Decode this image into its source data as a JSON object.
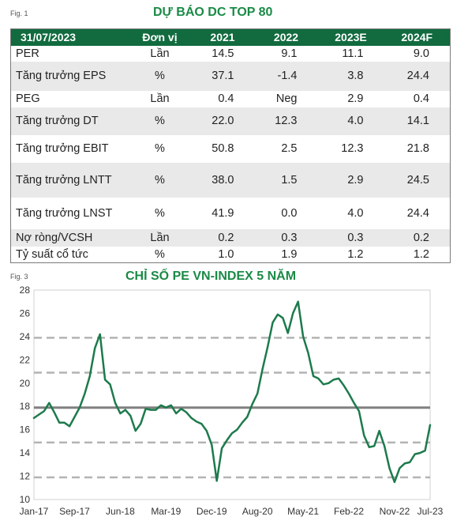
{
  "fig1_label": "Fig. 1",
  "table_title": "DỰ BÁO DC TOP 80",
  "table": {
    "headers": [
      "31/07/2023",
      "Đơn vị",
      "2021",
      "2022",
      "2023E",
      "2024F"
    ],
    "rows": [
      [
        "PER",
        "Lần",
        "14.5",
        "9.1",
        "11.1",
        "9.0"
      ],
      [
        "Tăng trưởng EPS",
        "%",
        "37.1",
        "-1.4",
        "3.8",
        "24.4"
      ],
      [
        "PEG",
        "Lần",
        "0.4",
        "Neg",
        "2.9",
        "0.4"
      ],
      [
        "Tăng trưởng DT",
        "%",
        "22.0",
        "12.3",
        "4.0",
        "14.1"
      ],
      [
        "Tăng trưởng EBIT",
        "%",
        "50.8",
        "2.5",
        "12.3",
        "21.8"
      ],
      [
        "Tăng trưởng LNTT",
        "%",
        "38.0",
        "1.5",
        "2.9",
        "24.5"
      ],
      [
        "Tăng trưởng LNST",
        "%",
        "41.9",
        "0.0",
        "4.0",
        "24.4"
      ],
      [
        "Nợ ròng/VCSH",
        "Lần",
        "0.2",
        "0.3",
        "0.3",
        "0.2"
      ],
      [
        "Tỷ suất cổ tức",
        "%",
        "1.0",
        "1.9",
        "1.2",
        "1.2"
      ]
    ]
  },
  "fig3_label": "Fig. 3",
  "chart_title": "CHỈ SỐ PE VN-INDEX 5 NĂM",
  "chart_data": {
    "type": "line",
    "title": "CHỈ SỐ PE VN-INDEX 5 NĂM",
    "xlabel": "",
    "ylabel": "",
    "ylim": [
      10,
      28
    ],
    "yticks": [
      10,
      12,
      14,
      16,
      18,
      20,
      22,
      24,
      26,
      28
    ],
    "xlim": [
      0,
      78
    ],
    "xtick_positions": [
      0,
      8,
      17,
      26,
      35,
      44,
      53,
      62,
      71,
      78
    ],
    "xtick_labels": [
      "Jan-17",
      "Sep-17",
      "Jun-18",
      "Mar-19",
      "Dec-19",
      "Aug-20",
      "May-21",
      "Feb-22",
      "Nov-22",
      "Jul-23"
    ],
    "grid": false,
    "legend": "none",
    "colors": {
      "series": "#1d7a4c",
      "mean": "#808080",
      "band": "#b3b3b3"
    },
    "reference_lines": [
      {
        "kind": "mean",
        "value": 17.9
      },
      {
        "kind": "band",
        "value": 23.9
      },
      {
        "kind": "band",
        "value": 20.9
      },
      {
        "kind": "band",
        "value": 14.9
      },
      {
        "kind": "band",
        "value": 11.9
      }
    ],
    "series": [
      {
        "x": [
          0,
          1,
          2,
          3,
          4,
          5,
          6,
          7,
          8,
          9,
          10,
          11,
          12,
          13,
          14,
          15,
          16,
          17,
          18,
          19,
          20,
          21,
          22,
          23,
          24,
          25,
          26,
          27,
          28,
          29,
          30,
          31,
          32,
          33,
          34,
          35,
          36,
          37,
          38,
          39,
          40,
          41,
          42,
          43,
          44,
          45,
          46,
          47,
          48,
          49,
          50,
          51,
          52,
          53,
          54,
          55,
          56,
          57,
          58,
          59,
          60,
          61,
          62,
          63,
          64,
          65,
          66,
          67,
          68,
          69,
          70,
          71,
          72,
          73,
          74,
          75,
          76,
          77,
          78
        ],
        "y": [
          17.0,
          17.3,
          17.6,
          18.3,
          17.5,
          16.6,
          16.6,
          16.3,
          17.1,
          17.9,
          19.1,
          20.6,
          23.0,
          24.2,
          20.3,
          19.9,
          18.3,
          17.4,
          17.7,
          17.2,
          15.9,
          16.5,
          17.8,
          17.7,
          17.7,
          18.1,
          17.9,
          18.1,
          17.4,
          17.8,
          17.5,
          17.0,
          16.7,
          16.5,
          15.9,
          14.7,
          11.6,
          14.4,
          15.1,
          15.7,
          16.0,
          16.6,
          17.1,
          18.2,
          19.1,
          21.2,
          23.1,
          25.2,
          25.9,
          25.6,
          24.3,
          26.0,
          27.0,
          24.0,
          22.6,
          20.6,
          20.4,
          19.9,
          20.0,
          20.3,
          20.4,
          19.8,
          19.1,
          18.3,
          17.6,
          15.5,
          14.5,
          14.6,
          15.9,
          14.6,
          12.7,
          11.5,
          12.7,
          13.1,
          13.2,
          13.9,
          14.0,
          14.2,
          16.4
        ]
      }
    ]
  }
}
